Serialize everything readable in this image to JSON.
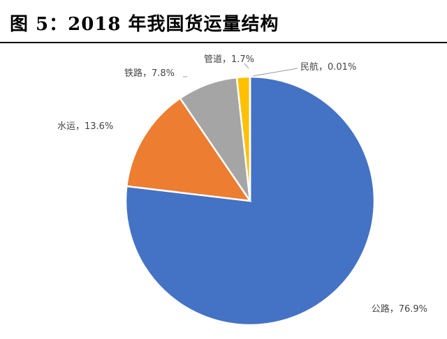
{
  "figure": {
    "title": "图 5：2018 年我国货运量结构"
  },
  "chart_data": {
    "type": "pie",
    "title": "",
    "slices": [
      {
        "name": "公路",
        "value": 76.9,
        "label": "公路，76.9%",
        "color": "#4472C4"
      },
      {
        "name": "水运",
        "value": 13.6,
        "label": "水运，13.6%",
        "color": "#ED7D31"
      },
      {
        "name": "铁路",
        "value": 7.8,
        "label": "铁路，7.8%",
        "color": "#A5A5A5"
      },
      {
        "name": "管道",
        "value": 1.7,
        "label": "管道，1.7%",
        "color": "#FFC000"
      },
      {
        "name": "民航",
        "value": 0.01,
        "label": "民航，0.01%",
        "color": "#5B9BD5"
      }
    ],
    "legend": "none"
  }
}
